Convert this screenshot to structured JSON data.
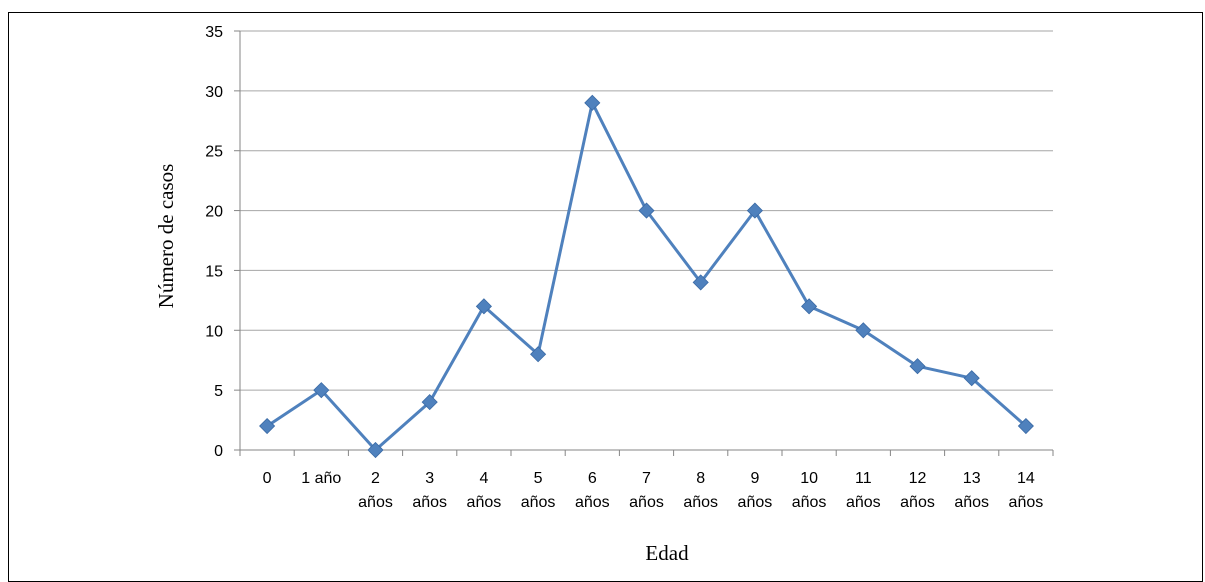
{
  "chart_data": {
    "type": "line",
    "title": "",
    "xlabel": "Edad",
    "ylabel": "Número de casos",
    "ylim": [
      0,
      35
    ],
    "yticks": [
      0,
      5,
      10,
      15,
      20,
      25,
      30,
      35
    ],
    "grid": true,
    "legend": "none",
    "categories": [
      [
        "0"
      ],
      [
        "1 año"
      ],
      [
        "2",
        "años"
      ],
      [
        "3",
        "años"
      ],
      [
        "4",
        "años"
      ],
      [
        "5",
        "años"
      ],
      [
        "6",
        "años"
      ],
      [
        "7",
        "años"
      ],
      [
        "8",
        "años"
      ],
      [
        "9",
        "años"
      ],
      [
        "10",
        "años"
      ],
      [
        "11",
        "años"
      ],
      [
        "12",
        "años"
      ],
      [
        "13",
        "años"
      ],
      [
        "14",
        "años"
      ]
    ],
    "series": [
      {
        "values": [
          2,
          5,
          0,
          4,
          12,
          8,
          29,
          20,
          14,
          20,
          12,
          10,
          7,
          6,
          2
        ]
      }
    ],
    "colors": {
      "line": "#4F81BD",
      "marker": "#4F81BD",
      "grid": "#A6A6A6",
      "axis": "#868686"
    }
  }
}
